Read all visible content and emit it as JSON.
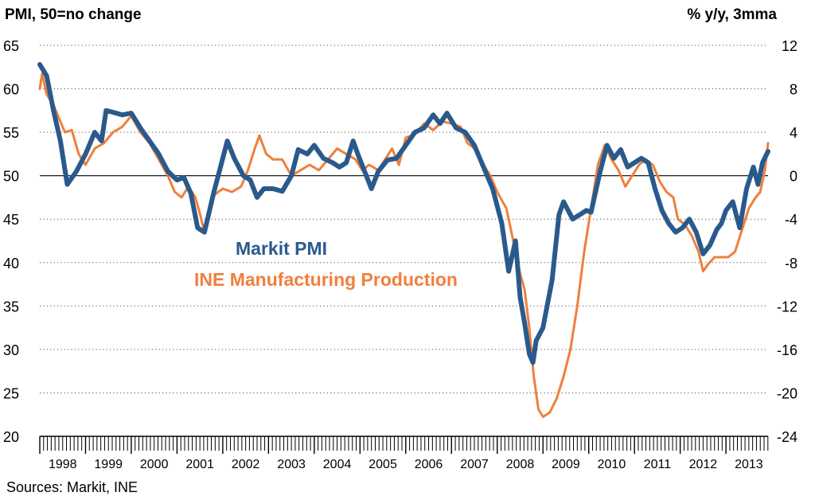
{
  "texts": {
    "left_axis_title": "PMI, 50=no change",
    "right_axis_title": "% y/y, 3mma",
    "source": "Sources: Markit, INE"
  },
  "colors": {
    "pmi": "#2a5a8c",
    "production": "#f07f3c",
    "grid": "#555555",
    "zero_line": "#000000"
  },
  "chart_data": {
    "type": "line",
    "x_axis": {
      "tick_labels": [
        "1998",
        "1999",
        "2000",
        "2001",
        "2002",
        "2003",
        "2004",
        "2005",
        "2006",
        "2007",
        "2008",
        "2009",
        "2010",
        "2011",
        "2012",
        "2013"
      ],
      "range": [
        1998.0,
        2013.92
      ],
      "minor_ticks": "monthly"
    },
    "y_left": {
      "range": [
        20,
        65
      ],
      "ticks": [
        20,
        25,
        30,
        35,
        40,
        45,
        50,
        55,
        60,
        65
      ]
    },
    "y_right": {
      "range": [
        -24,
        12
      ],
      "ticks": [
        -24,
        -20,
        -16,
        -12,
        -8,
        -4,
        0,
        4,
        8,
        12
      ]
    },
    "grid": "horizontal dotted",
    "reference_line": {
      "axis": "left",
      "value": 50
    },
    "series": [
      {
        "name": "Markit PMI",
        "axis": "left",
        "points": [
          [
            1998.0,
            62.8
          ],
          [
            1998.15,
            61.5
          ],
          [
            1998.3,
            57.5
          ],
          [
            1998.45,
            54.0
          ],
          [
            1998.6,
            49.0
          ],
          [
            1998.8,
            50.5
          ],
          [
            1999.0,
            52.5
          ],
          [
            1999.2,
            55.0
          ],
          [
            1999.35,
            54.0
          ],
          [
            1999.45,
            57.5
          ],
          [
            1999.6,
            57.3
          ],
          [
            1999.8,
            57.0
          ],
          [
            2000.0,
            57.2
          ],
          [
            2000.2,
            55.5
          ],
          [
            2000.4,
            54.0
          ],
          [
            2000.6,
            52.5
          ],
          [
            2000.8,
            50.5
          ],
          [
            2001.0,
            49.5
          ],
          [
            2001.15,
            49.8
          ],
          [
            2001.3,
            48.0
          ],
          [
            2001.45,
            44.0
          ],
          [
            2001.6,
            43.5
          ],
          [
            2001.8,
            48.0
          ],
          [
            2002.0,
            52.0
          ],
          [
            2002.1,
            54.0
          ],
          [
            2002.25,
            52.0
          ],
          [
            2002.45,
            50.0
          ],
          [
            2002.6,
            49.5
          ],
          [
            2002.75,
            47.5
          ],
          [
            2002.9,
            48.5
          ],
          [
            2003.1,
            48.5
          ],
          [
            2003.3,
            48.2
          ],
          [
            2003.5,
            50.0
          ],
          [
            2003.65,
            53.0
          ],
          [
            2003.85,
            52.5
          ],
          [
            2004.0,
            53.5
          ],
          [
            2004.2,
            52.0
          ],
          [
            2004.4,
            51.5
          ],
          [
            2004.55,
            51.0
          ],
          [
            2004.7,
            51.5
          ],
          [
            2004.85,
            54.0
          ],
          [
            2004.95,
            52.5
          ],
          [
            2005.1,
            50.5
          ],
          [
            2005.25,
            48.5
          ],
          [
            2005.4,
            50.5
          ],
          [
            2005.6,
            51.8
          ],
          [
            2005.8,
            52.0
          ],
          [
            2006.0,
            53.5
          ],
          [
            2006.2,
            55.0
          ],
          [
            2006.4,
            55.5
          ],
          [
            2006.6,
            57.0
          ],
          [
            2006.75,
            56.0
          ],
          [
            2006.9,
            57.2
          ],
          [
            2007.1,
            55.5
          ],
          [
            2007.3,
            55.0
          ],
          [
            2007.5,
            53.5
          ],
          [
            2007.7,
            51.0
          ],
          [
            2007.9,
            48.5
          ],
          [
            2008.1,
            44.5
          ],
          [
            2008.25,
            39.0
          ],
          [
            2008.4,
            42.5
          ],
          [
            2008.5,
            36.0
          ],
          [
            2008.6,
            33.0
          ],
          [
            2008.7,
            29.5
          ],
          [
            2008.78,
            28.5
          ],
          [
            2008.85,
            31.0
          ],
          [
            2009.0,
            32.5
          ],
          [
            2009.2,
            38.0
          ],
          [
            2009.35,
            45.5
          ],
          [
            2009.45,
            47.0
          ],
          [
            2009.55,
            46.0
          ],
          [
            2009.65,
            45.0
          ],
          [
            2009.8,
            45.5
          ],
          [
            2009.95,
            46.0
          ],
          [
            2010.05,
            45.8
          ],
          [
            2010.25,
            50.5
          ],
          [
            2010.4,
            53.5
          ],
          [
            2010.55,
            52.0
          ],
          [
            2010.7,
            53.0
          ],
          [
            2010.85,
            51.0
          ],
          [
            2011.0,
            51.5
          ],
          [
            2011.15,
            52.0
          ],
          [
            2011.3,
            51.5
          ],
          [
            2011.45,
            48.5
          ],
          [
            2011.6,
            46.0
          ],
          [
            2011.75,
            44.5
          ],
          [
            2011.9,
            43.5
          ],
          [
            2012.05,
            44.0
          ],
          [
            2012.2,
            45.0
          ],
          [
            2012.35,
            43.5
          ],
          [
            2012.5,
            41.0
          ],
          [
            2012.65,
            42.0
          ],
          [
            2012.8,
            43.8
          ],
          [
            2012.9,
            44.5
          ],
          [
            2013.0,
            46.0
          ],
          [
            2013.15,
            47.0
          ],
          [
            2013.3,
            44.0
          ],
          [
            2013.45,
            48.5
          ],
          [
            2013.6,
            51.0
          ],
          [
            2013.7,
            49.0
          ],
          [
            2013.8,
            51.5
          ],
          [
            2013.92,
            52.8
          ]
        ]
      },
      {
        "name": "INE Manufacturing Production",
        "axis": "right",
        "points": [
          [
            1998.0,
            8.0
          ],
          [
            1998.05,
            9.4
          ],
          [
            1998.15,
            7.5
          ],
          [
            1998.3,
            6.5
          ],
          [
            1998.4,
            5.5
          ],
          [
            1998.55,
            4.0
          ],
          [
            1998.7,
            4.2
          ],
          [
            1998.85,
            2.0
          ],
          [
            1999.0,
            1.0
          ],
          [
            1999.2,
            2.5
          ],
          [
            1999.4,
            3.0
          ],
          [
            1999.6,
            4.0
          ],
          [
            1999.8,
            4.5
          ],
          [
            2000.0,
            5.5
          ],
          [
            2000.2,
            4.0
          ],
          [
            2000.4,
            3.0
          ],
          [
            2000.6,
            1.5
          ],
          [
            2000.8,
            0.0
          ],
          [
            2000.95,
            -1.5
          ],
          [
            2001.1,
            -2.0
          ],
          [
            2001.25,
            -1.0
          ],
          [
            2001.4,
            -2.0
          ],
          [
            2001.5,
            -3.5
          ],
          [
            2001.6,
            -5.2
          ],
          [
            2001.75,
            -2.0
          ],
          [
            2001.9,
            -1.5
          ],
          [
            2002.0,
            -1.2
          ],
          [
            2002.2,
            -1.5
          ],
          [
            2002.4,
            -1.0
          ],
          [
            2002.55,
            0.5
          ],
          [
            2002.7,
            2.5
          ],
          [
            2002.8,
            3.7
          ],
          [
            2002.95,
            2.0
          ],
          [
            2003.1,
            1.5
          ],
          [
            2003.3,
            1.5
          ],
          [
            2003.5,
            0.0
          ],
          [
            2003.7,
            0.5
          ],
          [
            2003.9,
            1.0
          ],
          [
            2004.1,
            0.5
          ],
          [
            2004.3,
            1.5
          ],
          [
            2004.5,
            2.5
          ],
          [
            2004.7,
            2.0
          ],
          [
            2004.9,
            1.5
          ],
          [
            2005.05,
            0.5
          ],
          [
            2005.2,
            1.0
          ],
          [
            2005.4,
            0.5
          ],
          [
            2005.55,
            1.5
          ],
          [
            2005.7,
            2.5
          ],
          [
            2005.85,
            1.0
          ],
          [
            2006.0,
            3.5
          ],
          [
            2006.2,
            3.8
          ],
          [
            2006.4,
            4.8
          ],
          [
            2006.6,
            4.2
          ],
          [
            2006.8,
            5.0
          ],
          [
            2007.0,
            4.8
          ],
          [
            2007.2,
            4.5
          ],
          [
            2007.35,
            3.0
          ],
          [
            2007.5,
            2.5
          ],
          [
            2007.7,
            1.0
          ],
          [
            2007.85,
            0.0
          ],
          [
            2008.0,
            -1.5
          ],
          [
            2008.2,
            -3.0
          ],
          [
            2008.35,
            -6.0
          ],
          [
            2008.5,
            -9.0
          ],
          [
            2008.6,
            -10.5
          ],
          [
            2008.7,
            -14.0
          ],
          [
            2008.8,
            -18.5
          ],
          [
            2008.9,
            -21.5
          ],
          [
            2009.0,
            -22.2
          ],
          [
            2009.15,
            -21.8
          ],
          [
            2009.3,
            -20.5
          ],
          [
            2009.45,
            -18.5
          ],
          [
            2009.6,
            -16.0
          ],
          [
            2009.75,
            -12.0
          ],
          [
            2009.9,
            -7.0
          ],
          [
            2010.05,
            -3.0
          ],
          [
            2010.2,
            1.0
          ],
          [
            2010.35,
            2.8
          ],
          [
            2010.5,
            1.5
          ],
          [
            2010.65,
            0.5
          ],
          [
            2010.8,
            -1.0
          ],
          [
            2010.95,
            0.0
          ],
          [
            2011.1,
            1.0
          ],
          [
            2011.25,
            1.5
          ],
          [
            2011.4,
            1.0
          ],
          [
            2011.55,
            -0.5
          ],
          [
            2011.7,
            -1.5
          ],
          [
            2011.85,
            -2.0
          ],
          [
            2011.95,
            -4.0
          ],
          [
            2012.1,
            -4.5
          ],
          [
            2012.25,
            -5.5
          ],
          [
            2012.4,
            -7.0
          ],
          [
            2012.5,
            -8.8
          ],
          [
            2012.6,
            -8.2
          ],
          [
            2012.75,
            -7.5
          ],
          [
            2012.9,
            -7.5
          ],
          [
            2013.05,
            -7.5
          ],
          [
            2013.2,
            -7.0
          ],
          [
            2013.35,
            -5.0
          ],
          [
            2013.5,
            -3.0
          ],
          [
            2013.65,
            -2.0
          ],
          [
            2013.75,
            -1.5
          ],
          [
            2013.85,
            0.5
          ],
          [
            2013.92,
            3.0
          ]
        ]
      }
    ]
  }
}
